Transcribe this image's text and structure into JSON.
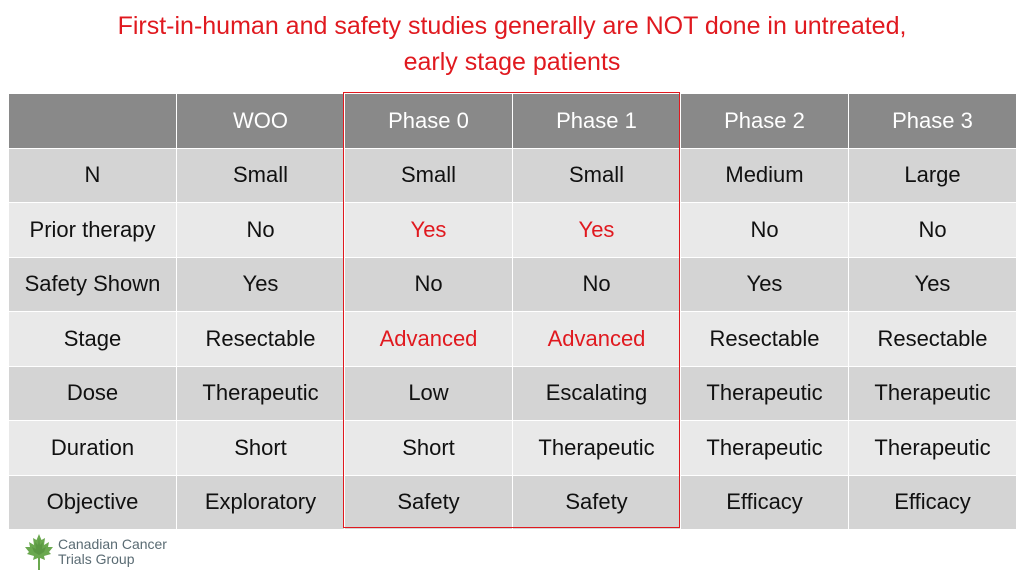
{
  "title": {
    "line1": "First-in-human and safety studies generally are NOT done in untreated,",
    "line2": "early stage patients"
  },
  "table": {
    "headers": [
      "",
      "WOO",
      "Phase 0",
      "Phase 1",
      "Phase 2",
      "Phase 3"
    ],
    "rows": [
      [
        "N",
        "Small",
        "Small",
        "Small",
        "Medium",
        "Large"
      ],
      [
        "Prior therapy",
        "No",
        "Yes",
        "Yes",
        "No",
        "No"
      ],
      [
        "Safety Shown",
        "Yes",
        "No",
        "No",
        "Yes",
        "Yes"
      ],
      [
        "Stage",
        "Resectable",
        "Advanced",
        "Advanced",
        "Resectable",
        "Resectable"
      ],
      [
        "Dose",
        "Therapeutic",
        "Low",
        "Escalating",
        "Therapeutic",
        "Therapeutic"
      ],
      [
        "Duration",
        "Short",
        "Short",
        "Therapeutic",
        "Therapeutic",
        "Therapeutic"
      ],
      [
        "Objective",
        "Exploratory",
        "Safety",
        "Safety",
        "Efficacy",
        "Efficacy"
      ]
    ]
  },
  "colors": {
    "title": "#e0191f",
    "emphasis": "#e0191f",
    "header_bg": "#898989",
    "row_dark": "#d4d4d4",
    "row_light": "#e9e9e9",
    "logo_leaf": "#6aa84f"
  },
  "logo": {
    "icon": "maple-leaf-icon",
    "line1": "Canadian Cancer",
    "line2": "Trials Group"
  }
}
